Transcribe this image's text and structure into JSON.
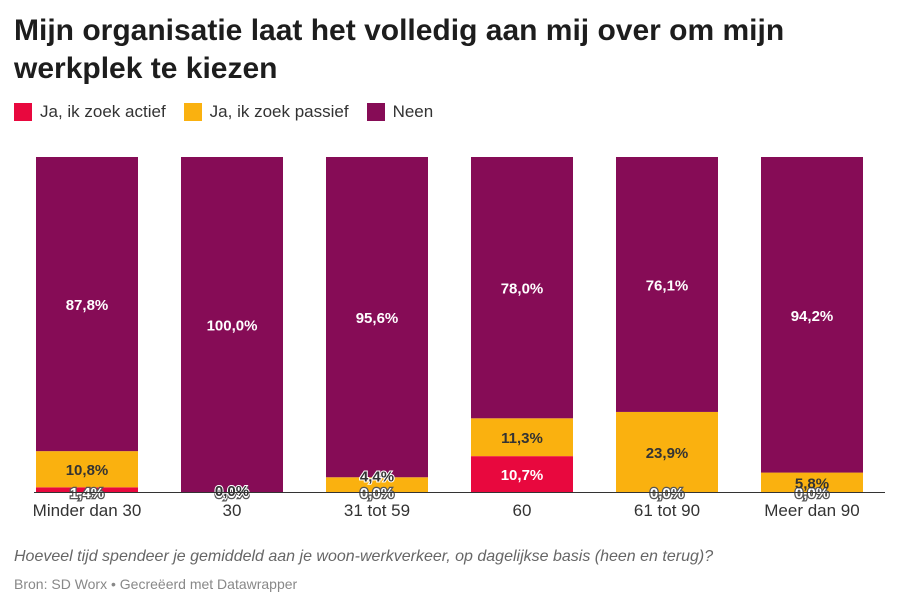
{
  "title": "Mijn organisatie laat het volledig aan mij over om mijn werkplek te kiezen",
  "subtitle": "Hoeveel tijd spendeer je gemiddeld aan je woon-werkverkeer, op dagelijkse basis (heen en terug)?",
  "footer": "Bron: SD Worx • Gecreëerd met Datawrapper",
  "legend": [
    {
      "label": "Ja, ik zoek actief",
      "color": "#e8083e"
    },
    {
      "label": "Ja, ik zoek passief",
      "color": "#fab10f"
    },
    {
      "label": "Neen",
      "color": "#860c56"
    }
  ],
  "chart_data": {
    "type": "bar",
    "stacked": true,
    "legend_position": "top-left",
    "ylim": [
      0,
      100
    ],
    "categories": [
      "Minder dan 30",
      "30",
      "31 tot 59",
      "60",
      "61 tot 90",
      "Meer dan 90"
    ],
    "series": [
      {
        "name": "Ja, ik zoek actief",
        "color": "#e8083e",
        "values": [
          1.4,
          0.0,
          0.0,
          10.7,
          0.0,
          0.0
        ],
        "labels": [
          "1,4%",
          "0,0%",
          "0,0%",
          "10,7%",
          "0,0%",
          "0,0%"
        ]
      },
      {
        "name": "Ja, ik zoek passief",
        "color": "#fab10f",
        "values": [
          10.8,
          0.0,
          4.4,
          11.3,
          23.9,
          5.8
        ],
        "labels": [
          "10,8%",
          "0,0%",
          "4,4%",
          "11,3%",
          "23,9%",
          "5,8%"
        ]
      },
      {
        "name": "Neen",
        "color": "#860c56",
        "values": [
          87.8,
          100.0,
          95.6,
          78.0,
          76.1,
          94.2
        ],
        "labels": [
          "87,8%",
          "100,0%",
          "95,6%",
          "78,0%",
          "76,1%",
          "94,2%"
        ]
      }
    ]
  }
}
